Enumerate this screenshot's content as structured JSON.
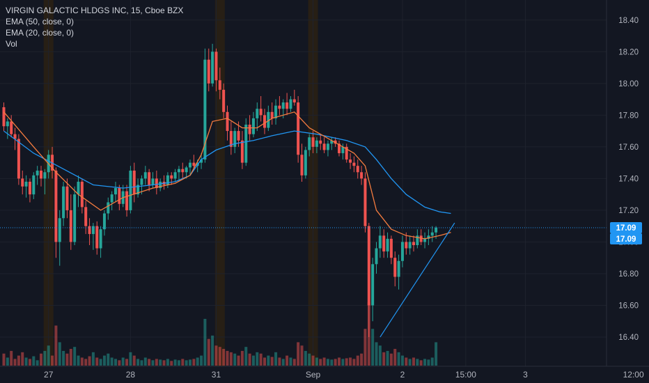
{
  "legend": {
    "title": "VIRGIN GALACTIC HLDGS INC, 15, Cboe BZX",
    "ema50": "EMA (50, close, 0)",
    "ema20": "EMA (20, close, 0)",
    "vol": "Vol"
  },
  "colors": {
    "background": "#131722",
    "up": "#26a69a",
    "down": "#ef5350",
    "ema50": "#2196f3",
    "ema20": "#f57c3f",
    "trendline": "#2196f3",
    "price_tag": "#2196f3",
    "session_band": "#2a2014",
    "grid": "#1e222d"
  },
  "chart_data": {
    "type": "candlestick",
    "interval": "15",
    "ylim": [
      16.22,
      18.5
    ],
    "yticks": [
      16.4,
      16.6,
      16.8,
      17.0,
      17.2,
      17.4,
      17.6,
      17.8,
      18.0,
      18.2,
      18.4
    ],
    "ytick_labels": [
      "16.40",
      "16.60",
      "16.80",
      "17.00",
      "17.20",
      "17.40",
      "17.60",
      "17.80",
      "18.00",
      "18.20",
      "18.40"
    ],
    "x_tick_labels": [
      {
        "label": "27",
        "bar": 12
      },
      {
        "label": "28",
        "bar": 34
      },
      {
        "label": "31",
        "bar": 57
      },
      {
        "label": "Sep",
        "bar": 83
      },
      {
        "label": "2",
        "bar": 107
      },
      {
        "label": "15:00",
        "bar": 124
      },
      {
        "label": "3",
        "bar": 140
      },
      {
        "label": "12:00",
        "bar": 169
      }
    ],
    "session_bands": [
      {
        "bar": 12
      },
      {
        "bar": 58
      },
      {
        "bar": 83
      }
    ],
    "last_price": 17.09,
    "last_price_label": "17.09",
    "ema_price": 17.09,
    "ema_price_label": "17.09",
    "candles": [
      [
        17.85,
        17.88,
        17.7,
        17.73
      ],
      [
        17.73,
        17.78,
        17.65,
        17.76
      ],
      [
        17.76,
        17.8,
        17.66,
        17.68
      ],
      [
        17.68,
        17.72,
        17.58,
        17.65
      ],
      [
        17.65,
        17.68,
        17.36,
        17.4
      ],
      [
        17.4,
        17.45,
        17.3,
        17.35
      ],
      [
        17.35,
        17.42,
        17.28,
        17.38
      ],
      [
        17.38,
        17.4,
        17.25,
        17.3
      ],
      [
        17.3,
        17.44,
        17.27,
        17.42
      ],
      [
        17.42,
        17.48,
        17.36,
        17.45
      ],
      [
        17.45,
        17.48,
        17.35,
        17.4
      ],
      [
        17.4,
        17.46,
        17.3,
        17.44
      ],
      [
        17.44,
        17.58,
        17.4,
        17.55
      ],
      [
        17.55,
        17.6,
        17.4,
        17.45
      ],
      [
        17.45,
        17.47,
        16.9,
        17.0
      ],
      [
        17.0,
        17.2,
        16.85,
        17.15
      ],
      [
        17.15,
        17.38,
        17.1,
        17.35
      ],
      [
        17.35,
        17.4,
        17.15,
        17.2
      ],
      [
        17.2,
        17.3,
        16.95,
        17.0
      ],
      [
        17.0,
        17.35,
        16.98,
        17.3
      ],
      [
        17.3,
        17.42,
        17.22,
        17.38
      ],
      [
        17.38,
        17.4,
        17.18,
        17.22
      ],
      [
        17.22,
        17.26,
        17.05,
        17.1
      ],
      [
        17.1,
        17.15,
        16.98,
        17.05
      ],
      [
        17.05,
        17.12,
        16.95,
        17.1
      ],
      [
        17.1,
        17.13,
        16.92,
        16.96
      ],
      [
        16.96,
        17.1,
        16.9,
        17.08
      ],
      [
        17.08,
        17.2,
        17.04,
        17.18
      ],
      [
        17.18,
        17.28,
        17.14,
        17.25
      ],
      [
        17.25,
        17.32,
        17.2,
        17.3
      ],
      [
        17.3,
        17.38,
        17.25,
        17.34
      ],
      [
        17.34,
        17.36,
        17.2,
        17.24
      ],
      [
        17.24,
        17.36,
        17.22,
        17.32
      ],
      [
        17.32,
        17.36,
        17.16,
        17.2
      ],
      [
        17.2,
        17.48,
        17.18,
        17.45
      ],
      [
        17.45,
        17.5,
        17.25,
        17.3
      ],
      [
        17.3,
        17.4,
        17.28,
        17.36
      ],
      [
        17.36,
        17.42,
        17.3,
        17.4
      ],
      [
        17.4,
        17.48,
        17.36,
        17.44
      ],
      [
        17.44,
        17.46,
        17.32,
        17.36
      ],
      [
        17.36,
        17.44,
        17.34,
        17.4
      ],
      [
        17.4,
        17.45,
        17.3,
        17.34
      ],
      [
        17.34,
        17.4,
        17.32,
        17.38
      ],
      [
        17.38,
        17.42,
        17.33,
        17.36
      ],
      [
        17.36,
        17.44,
        17.34,
        17.42
      ],
      [
        17.42,
        17.44,
        17.36,
        17.4
      ],
      [
        17.4,
        17.46,
        17.38,
        17.44
      ],
      [
        17.44,
        17.48,
        17.38,
        17.46
      ],
      [
        17.46,
        17.5,
        17.4,
        17.44
      ],
      [
        17.44,
        17.48,
        17.4,
        17.47
      ],
      [
        17.47,
        17.52,
        17.42,
        17.5
      ],
      [
        17.5,
        17.55,
        17.45,
        17.48
      ],
      [
        17.48,
        17.52,
        17.44,
        17.5
      ],
      [
        17.5,
        17.56,
        17.46,
        17.52
      ],
      [
        17.52,
        18.22,
        17.5,
        18.15
      ],
      [
        18.15,
        18.22,
        17.95,
        18.0
      ],
      [
        18.0,
        18.25,
        17.98,
        18.2
      ],
      [
        18.2,
        18.22,
        17.95,
        18.02
      ],
      [
        18.02,
        18.1,
        17.9,
        17.96
      ],
      [
        17.96,
        18.0,
        17.78,
        17.82
      ],
      [
        17.82,
        17.86,
        17.64,
        17.7
      ],
      [
        17.7,
        17.76,
        17.55,
        17.6
      ],
      [
        17.6,
        17.72,
        17.56,
        17.7
      ],
      [
        17.7,
        17.76,
        17.6,
        17.64
      ],
      [
        17.64,
        17.7,
        17.46,
        17.5
      ],
      [
        17.5,
        17.78,
        17.48,
        17.74
      ],
      [
        17.74,
        17.8,
        17.64,
        17.68
      ],
      [
        17.68,
        17.82,
        17.66,
        17.78
      ],
      [
        17.78,
        17.88,
        17.7,
        17.84
      ],
      [
        17.84,
        17.92,
        17.76,
        17.8
      ],
      [
        17.8,
        17.84,
        17.68,
        17.72
      ],
      [
        17.72,
        17.86,
        17.7,
        17.82
      ],
      [
        17.82,
        17.88,
        17.74,
        17.78
      ],
      [
        17.78,
        17.9,
        17.74,
        17.86
      ],
      [
        17.86,
        17.92,
        17.8,
        17.84
      ],
      [
        17.84,
        17.9,
        17.78,
        17.88
      ],
      [
        17.88,
        17.94,
        17.8,
        17.84
      ],
      [
        17.84,
        17.92,
        17.82,
        17.9
      ],
      [
        17.9,
        17.96,
        17.86,
        17.88
      ],
      [
        17.88,
        17.92,
        17.5,
        17.55
      ],
      [
        17.55,
        17.62,
        17.38,
        17.42
      ],
      [
        17.42,
        17.6,
        17.4,
        17.58
      ],
      [
        17.58,
        17.68,
        17.54,
        17.66
      ],
      [
        17.66,
        17.7,
        17.56,
        17.6
      ],
      [
        17.6,
        17.66,
        17.56,
        17.64
      ],
      [
        17.64,
        17.68,
        17.58,
        17.62
      ],
      [
        17.62,
        17.66,
        17.56,
        17.58
      ],
      [
        17.58,
        17.64,
        17.54,
        17.62
      ],
      [
        17.62,
        17.66,
        17.58,
        17.64
      ],
      [
        17.64,
        17.66,
        17.6,
        17.62
      ],
      [
        17.62,
        17.64,
        17.54,
        17.56
      ],
      [
        17.56,
        17.62,
        17.52,
        17.6
      ],
      [
        17.6,
        17.62,
        17.5,
        17.52
      ],
      [
        17.52,
        17.56,
        17.46,
        17.5
      ],
      [
        17.5,
        17.54,
        17.44,
        17.48
      ],
      [
        17.48,
        17.52,
        17.4,
        17.44
      ],
      [
        17.44,
        17.48,
        17.36,
        17.4
      ],
      [
        17.4,
        17.44,
        17.06,
        17.1
      ],
      [
        17.1,
        17.12,
        16.4,
        16.6
      ],
      [
        16.6,
        16.9,
        16.5,
        16.86
      ],
      [
        16.86,
        17.0,
        16.8,
        16.96
      ],
      [
        16.96,
        17.1,
        16.9,
        17.04
      ],
      [
        17.04,
        17.08,
        16.9,
        16.94
      ],
      [
        16.94,
        17.06,
        16.9,
        17.02
      ],
      [
        17.02,
        17.04,
        16.86,
        16.9
      ],
      [
        16.9,
        16.94,
        16.72,
        16.78
      ],
      [
        16.78,
        16.92,
        16.7,
        16.88
      ],
      [
        16.88,
        17.04,
        16.84,
        17.0
      ],
      [
        17.0,
        17.06,
        16.92,
        16.96
      ],
      [
        16.96,
        17.04,
        16.92,
        17.0
      ],
      [
        17.0,
        17.04,
        16.94,
        16.98
      ],
      [
        16.98,
        17.08,
        16.96,
        17.04
      ],
      [
        17.04,
        17.08,
        16.98,
        17.0
      ],
      [
        17.0,
        17.06,
        16.96,
        17.02
      ],
      [
        17.02,
        17.08,
        16.98,
        17.04
      ],
      [
        17.04,
        17.1,
        17.0,
        17.06
      ],
      [
        17.06,
        17.1,
        17.02,
        17.09
      ]
    ],
    "volume": [
      0.18,
      0.12,
      0.22,
      0.1,
      0.15,
      0.2,
      0.12,
      0.1,
      0.14,
      0.08,
      0.18,
      0.22,
      0.3,
      0.15,
      0.6,
      0.35,
      0.22,
      0.18,
      0.25,
      0.28,
      0.15,
      0.12,
      0.1,
      0.14,
      0.2,
      0.12,
      0.1,
      0.15,
      0.18,
      0.12,
      0.1,
      0.08,
      0.12,
      0.1,
      0.2,
      0.15,
      0.1,
      0.08,
      0.12,
      0.1,
      0.08,
      0.1,
      0.09,
      0.08,
      0.1,
      0.07,
      0.09,
      0.08,
      0.1,
      0.08,
      0.09,
      0.1,
      0.12,
      0.15,
      0.7,
      0.4,
      0.45,
      0.3,
      0.28,
      0.25,
      0.22,
      0.2,
      0.18,
      0.15,
      0.22,
      0.28,
      0.18,
      0.15,
      0.2,
      0.18,
      0.12,
      0.15,
      0.13,
      0.2,
      0.12,
      0.1,
      0.15,
      0.12,
      0.1,
      0.35,
      0.3,
      0.22,
      0.18,
      0.15,
      0.12,
      0.1,
      0.12,
      0.1,
      0.09,
      0.1,
      0.12,
      0.1,
      0.11,
      0.12,
      0.1,
      0.15,
      0.18,
      0.55,
      0.95,
      0.55,
      0.35,
      0.3,
      0.2,
      0.22,
      0.18,
      0.25,
      0.2,
      0.15,
      0.12,
      0.1,
      0.12,
      0.1,
      0.08,
      0.1,
      0.09,
      0.12,
      0.35
    ],
    "volume_max_price": 16.62,
    "ema50": [
      [
        0,
        17.7
      ],
      [
        8,
        17.56
      ],
      [
        16,
        17.46
      ],
      [
        24,
        17.36
      ],
      [
        32,
        17.34
      ],
      [
        40,
        17.36
      ],
      [
        46,
        17.38
      ],
      [
        50,
        17.42
      ],
      [
        53,
        17.52
      ],
      [
        57,
        17.58
      ],
      [
        62,
        17.62
      ],
      [
        67,
        17.64
      ],
      [
        72,
        17.67
      ],
      [
        78,
        17.7
      ],
      [
        84,
        17.68
      ],
      [
        92,
        17.64
      ],
      [
        97,
        17.6
      ],
      [
        100,
        17.52
      ],
      [
        104,
        17.4
      ],
      [
        108,
        17.3
      ],
      [
        113,
        17.22
      ],
      [
        117,
        17.19
      ],
      [
        120,
        17.18
      ]
    ],
    "ema20": [
      [
        0,
        17.82
      ],
      [
        8,
        17.6
      ],
      [
        14,
        17.44
      ],
      [
        20,
        17.3
      ],
      [
        26,
        17.2
      ],
      [
        32,
        17.28
      ],
      [
        40,
        17.34
      ],
      [
        46,
        17.37
      ],
      [
        50,
        17.42
      ],
      [
        53,
        17.55
      ],
      [
        56,
        17.76
      ],
      [
        60,
        17.78
      ],
      [
        64,
        17.72
      ],
      [
        68,
        17.72
      ],
      [
        72,
        17.78
      ],
      [
        78,
        17.82
      ],
      [
        82,
        17.72
      ],
      [
        88,
        17.64
      ],
      [
        94,
        17.56
      ],
      [
        97,
        17.48
      ],
      [
        100,
        17.2
      ],
      [
        104,
        17.08
      ],
      [
        108,
        17.04
      ],
      [
        113,
        17.02
      ],
      [
        117,
        17.04
      ],
      [
        120,
        17.06
      ]
    ],
    "trendline": [
      [
        101,
        16.4
      ],
      [
        121,
        17.12
      ]
    ]
  }
}
